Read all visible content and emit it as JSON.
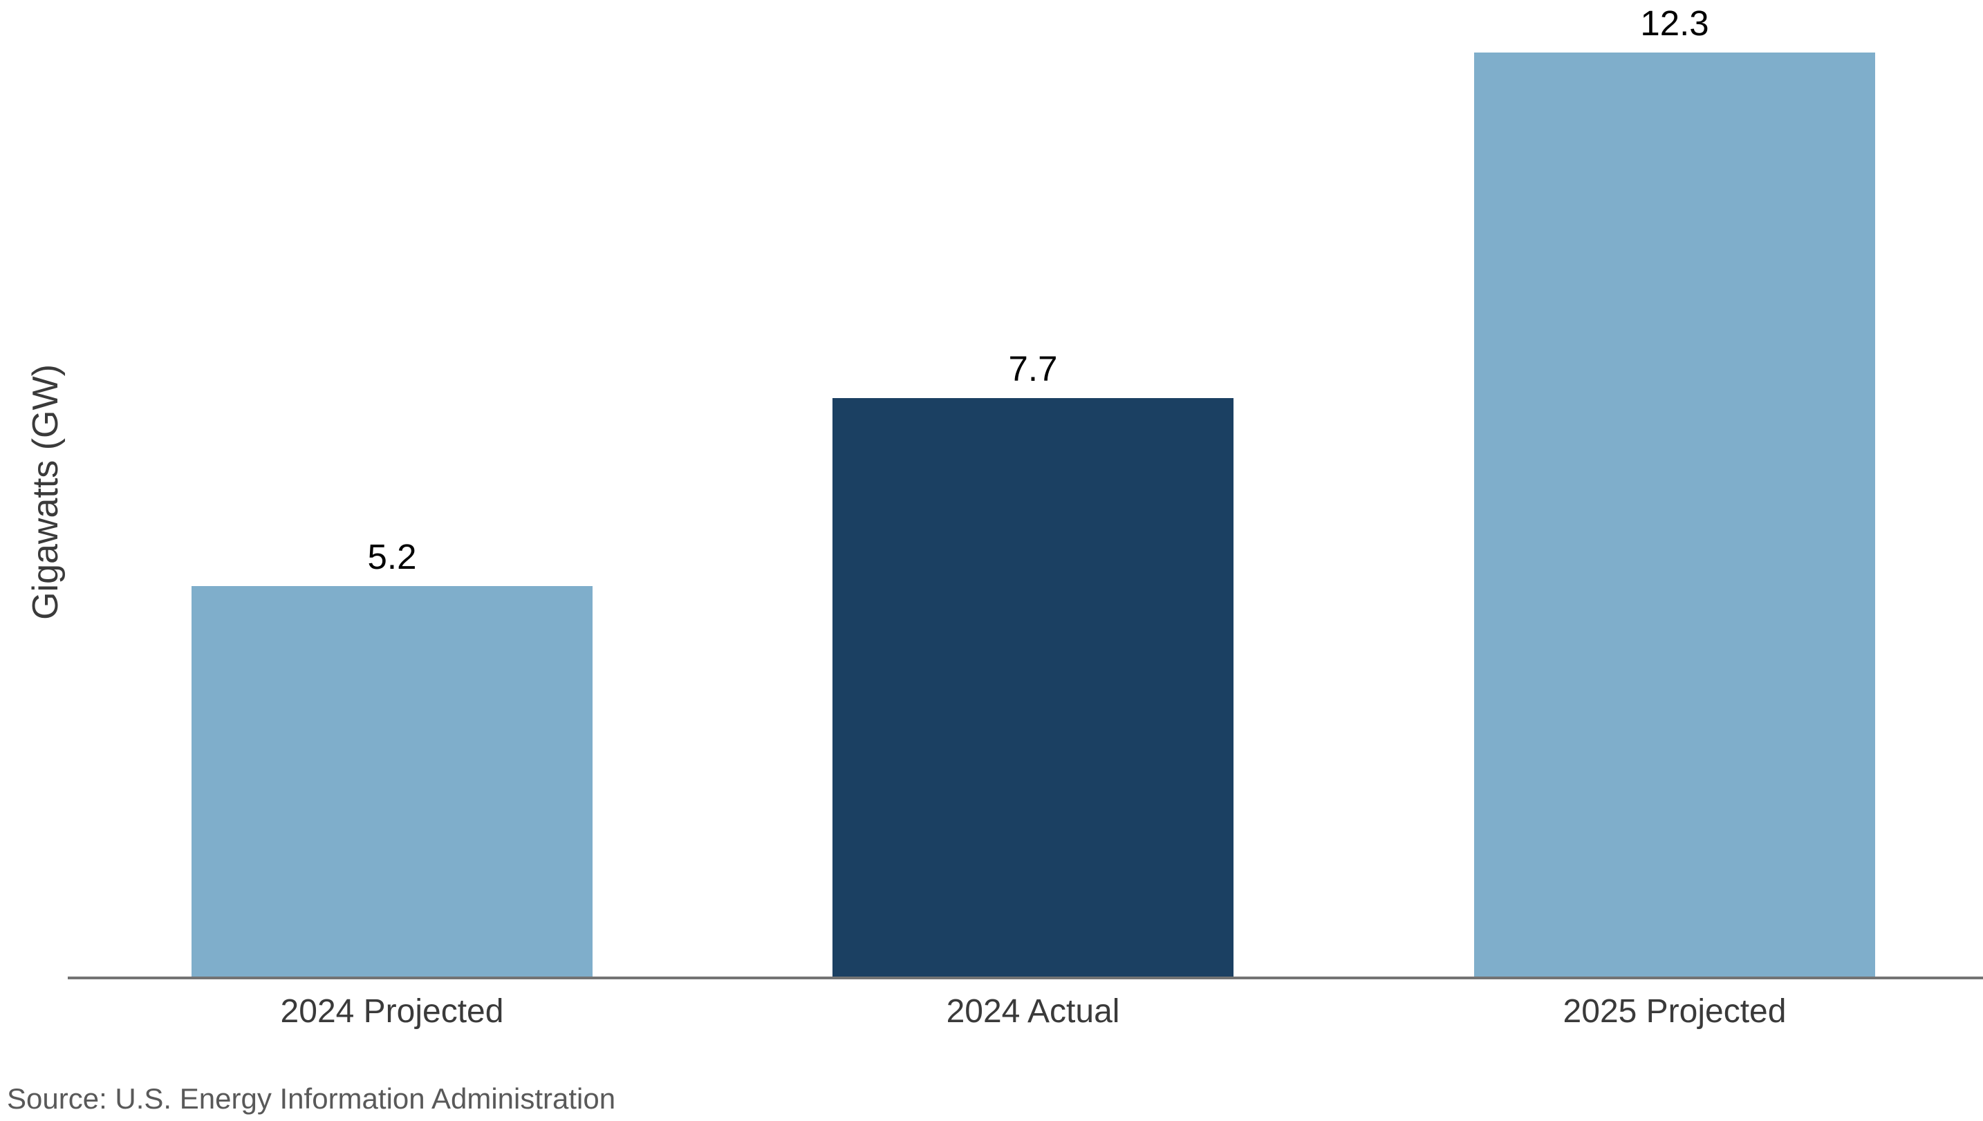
{
  "page": {
    "background_color": "#FFFFFF"
  },
  "chart_data": {
    "type": "bar",
    "title": "",
    "categories": [
      "2024 Projected",
      "2024 Actual",
      "2025 Projected"
    ],
    "values": [
      5.2,
      7.7,
      12.3
    ],
    "data_labels": [
      "5.2",
      "7.7",
      "12.3"
    ],
    "xlabel": "",
    "ylabel": "Gigawatts (GW)",
    "ylim": [
      0,
      13
    ],
    "grid": false,
    "legend_position": "none",
    "bar_colors": [
      "#7FAECB",
      "#1B4062",
      "#7FAECB"
    ],
    "value_label_color": "#000000",
    "category_label_color": "#3A3A3A",
    "ylabel_color": "#3A3A3A",
    "axis_line_color": "#737373",
    "source_note": "Source: U.S. Energy Information Administration",
    "source_color": "#595959"
  }
}
